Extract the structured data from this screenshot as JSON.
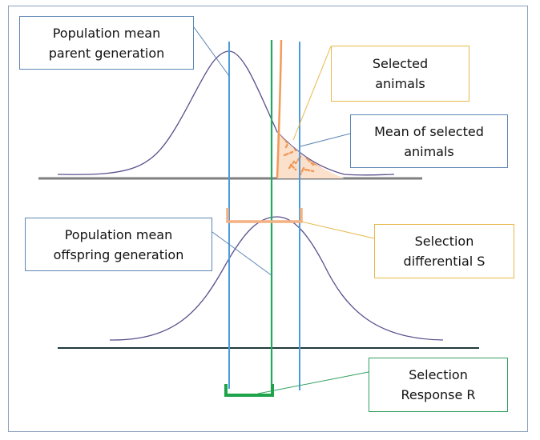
{
  "labels": {
    "parent_mean": {
      "line1": "Population mean",
      "line2": "parent generation"
    },
    "selected_animals": {
      "line1": "Selected",
      "line2": "animals"
    },
    "selected_mean": {
      "line1": "Mean of selected",
      "line2": "animals"
    },
    "offspring_mean": {
      "line1": "Population mean",
      "line2": "offspring generation"
    },
    "selection_differential": {
      "line1": "Selection",
      "line2": "differential S"
    },
    "selection_response": {
      "line1": "Selection",
      "line2": "Response R"
    }
  },
  "colors": {
    "blue_box_border": "#5d86b3",
    "gold_box_border": "#e7b84a",
    "green_box_border": "#33a060",
    "curve": "#5b4f8c",
    "parent_mean_line": "#4c9be0",
    "offspring_mean_line": "#23a860",
    "selection_threshold": "#f19a5a",
    "selected_region_fill": "#f4b183",
    "selected_region_dash": "#f19a5a",
    "parent_axis": "#7f7f7f",
    "offspring_axis": "#1f3a3a",
    "differential_bracket": "#f4b183",
    "response_bracket": "#1fa34a"
  }
}
